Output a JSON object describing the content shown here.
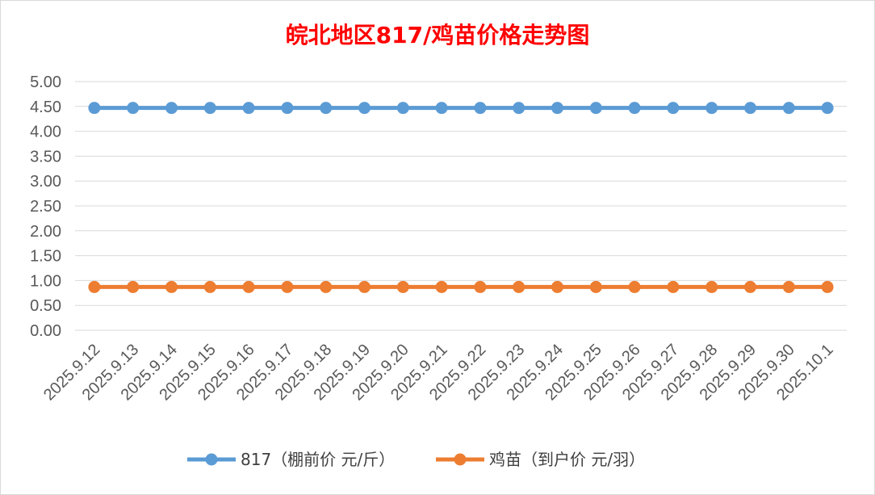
{
  "chart_data": {
    "type": "line",
    "title": "皖北地区817/鸡苗价格走势图",
    "xlabel": "",
    "ylabel": "",
    "categories": [
      "2025.9.12",
      "2025.9.13",
      "2025.9.14",
      "2025.9.15",
      "2025.9.16",
      "2025.9.17",
      "2025.9.18",
      "2025.9.19",
      "2025.9.20",
      "2025.9.21",
      "2025.9.22",
      "2025.9.23",
      "2025.9.24",
      "2025.9.25",
      "2025.9.26",
      "2025.9.27",
      "2025.9.28",
      "2025.9.29",
      "2025.9.30",
      "2025.10.1"
    ],
    "ylim": [
      0,
      5
    ],
    "yticks": [
      "0.00",
      "0.50",
      "1.00",
      "1.50",
      "2.00",
      "2.50",
      "3.00",
      "3.50",
      "4.00",
      "4.50",
      "5.00"
    ],
    "grid": true,
    "legend_position": "bottom",
    "series": [
      {
        "name": "817（棚前价 元/斤）",
        "color": "#5b9bd5",
        "values": [
          4.47,
          4.47,
          4.47,
          4.47,
          4.47,
          4.47,
          4.47,
          4.47,
          4.47,
          4.47,
          4.47,
          4.47,
          4.47,
          4.47,
          4.47,
          4.47,
          4.47,
          4.47,
          4.47,
          4.47
        ]
      },
      {
        "name": "鸡苗（到户价 元/羽）",
        "color": "#ed7d31",
        "values": [
          0.87,
          0.87,
          0.87,
          0.87,
          0.87,
          0.87,
          0.87,
          0.87,
          0.87,
          0.87,
          0.87,
          0.87,
          0.87,
          0.87,
          0.87,
          0.87,
          0.87,
          0.87,
          0.87,
          0.87
        ]
      }
    ]
  }
}
